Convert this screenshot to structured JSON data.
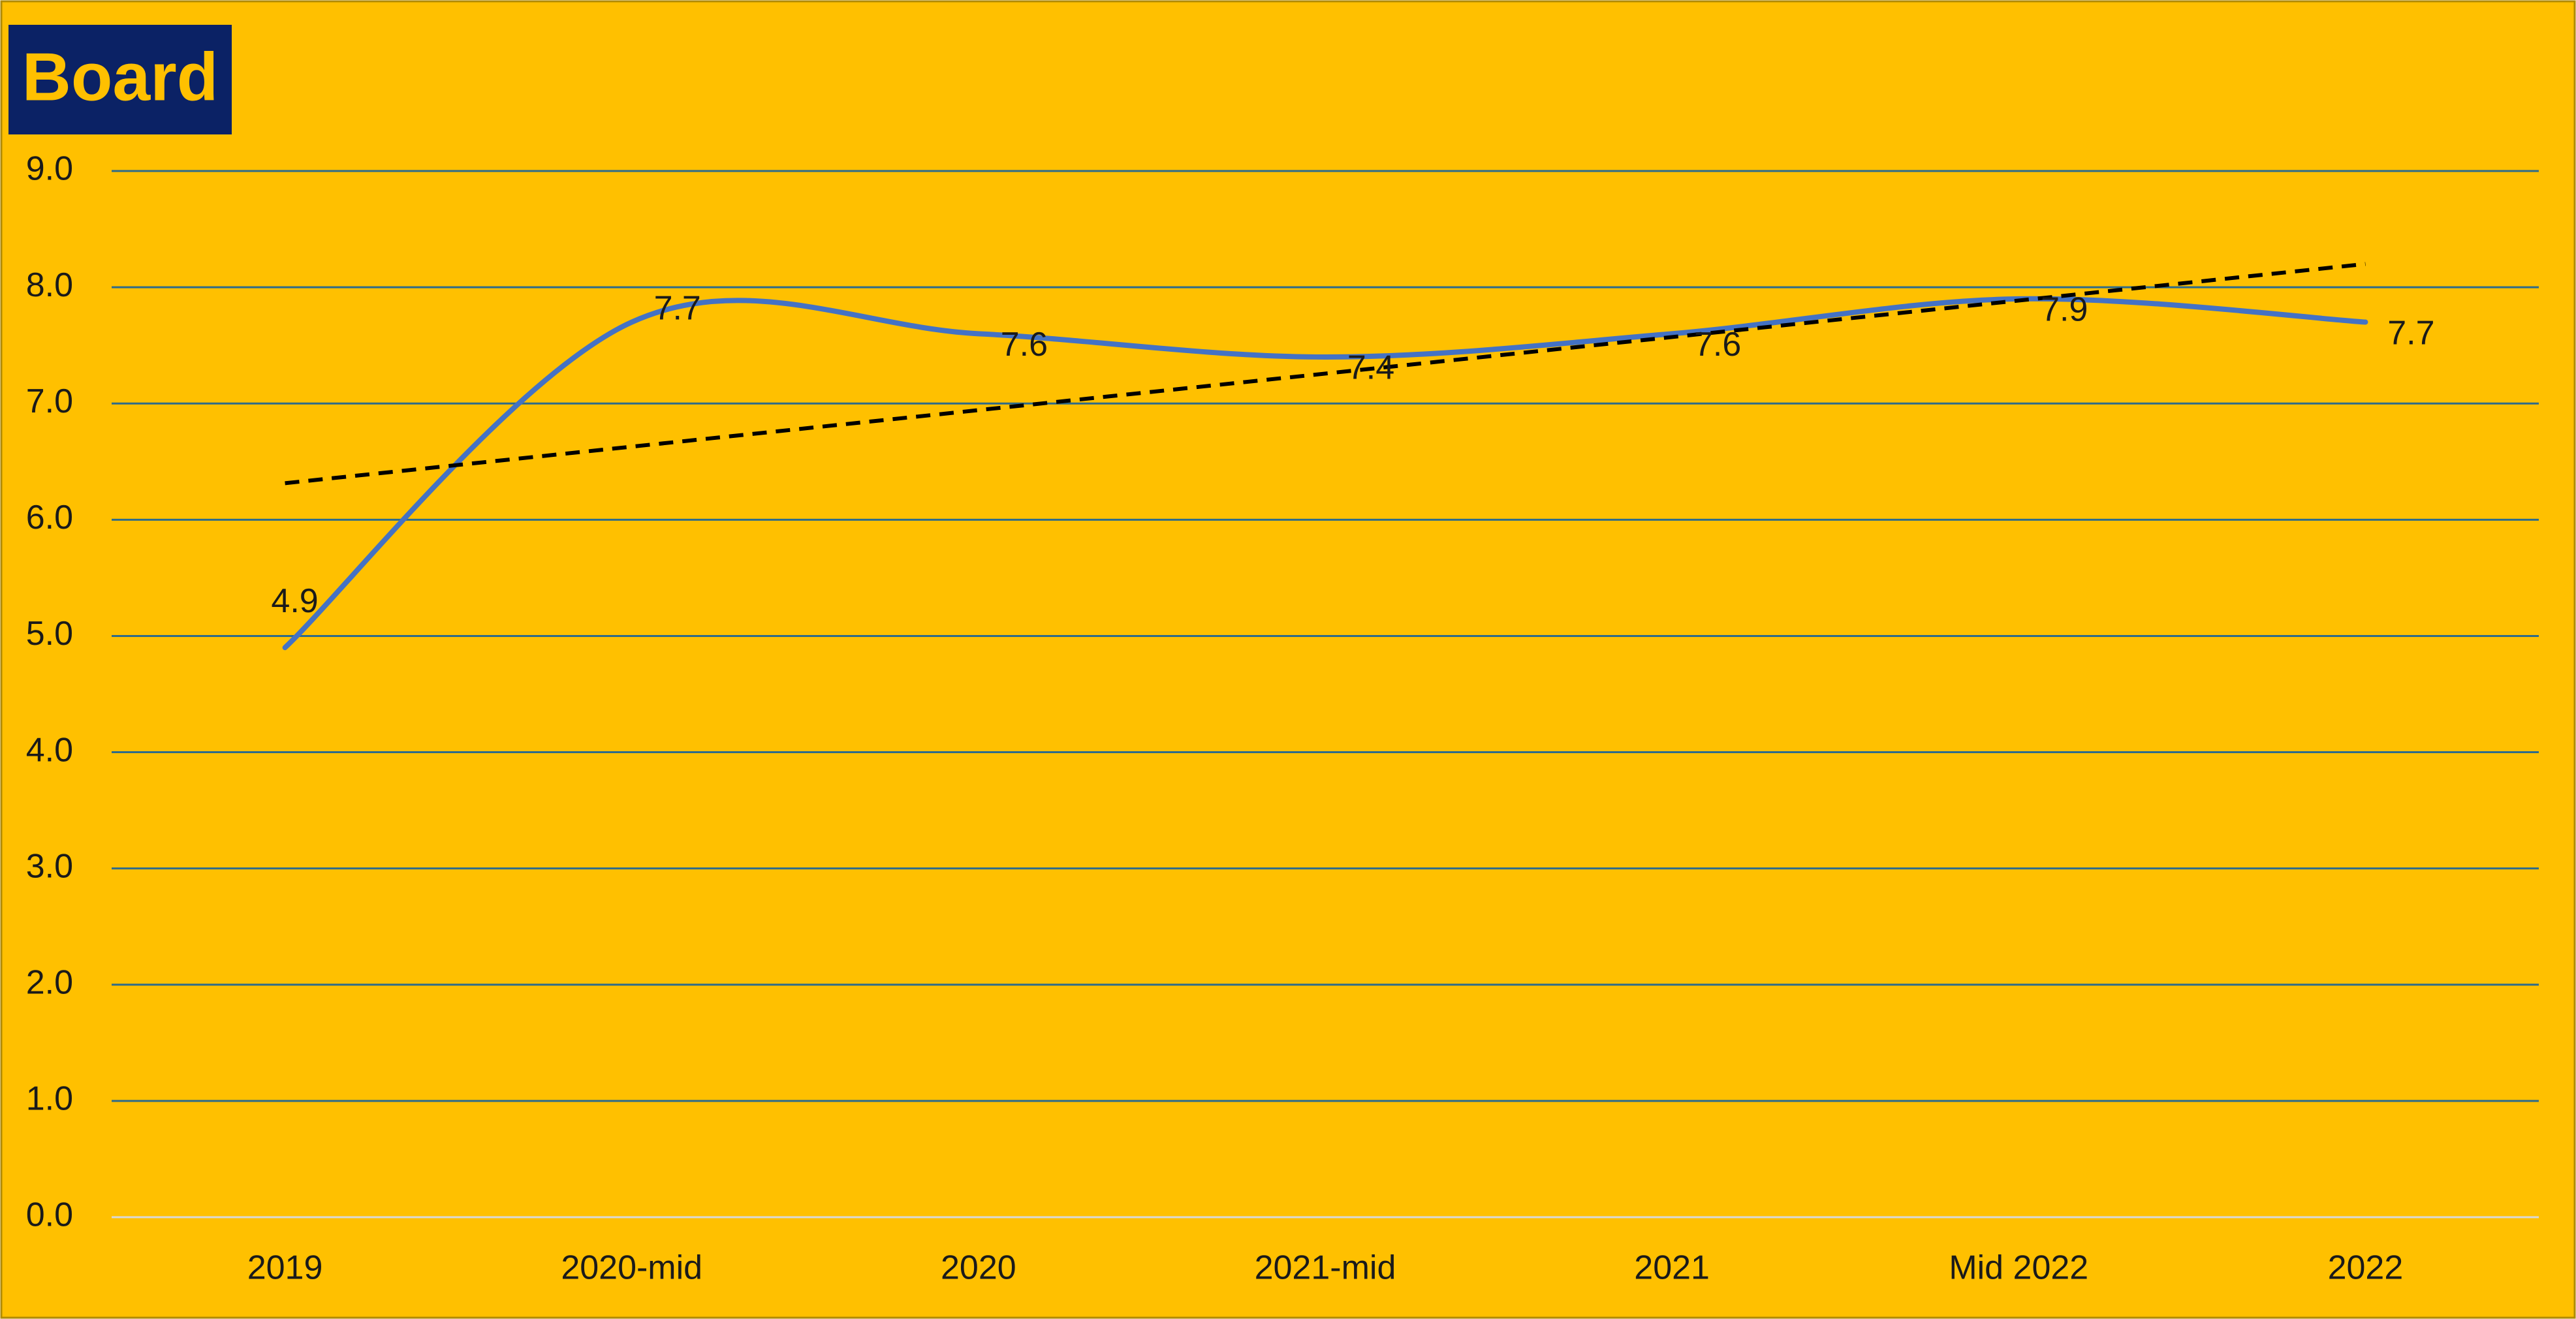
{
  "chart_data": {
    "type": "line",
    "title": "Board",
    "categories": [
      "2019",
      "2020-mid",
      "2020",
      "2021-mid",
      "2021",
      "Mid 2022",
      "2022"
    ],
    "series": [
      {
        "color": "#4472c4",
        "values": [
          4.9,
          7.7,
          7.6,
          7.4,
          7.6,
          7.9,
          7.7
        ]
      }
    ],
    "ylim": [
      0,
      9
    ],
    "yticks": [
      {
        "value": 0,
        "label": "0.0"
      },
      {
        "value": 1,
        "label": "1.0"
      },
      {
        "value": 2,
        "label": "2.0"
      },
      {
        "value": 3,
        "label": "3.0"
      },
      {
        "value": 4,
        "label": "4.0"
      },
      {
        "value": 5,
        "label": "5.0"
      },
      {
        "value": 6,
        "label": "6.0"
      },
      {
        "value": 7,
        "label": "7.0"
      },
      {
        "value": 8,
        "label": "8.0"
      },
      {
        "value": 9,
        "label": "9.0"
      }
    ],
    "grid": true,
    "smooth": true,
    "trendline": "linear"
  }
}
